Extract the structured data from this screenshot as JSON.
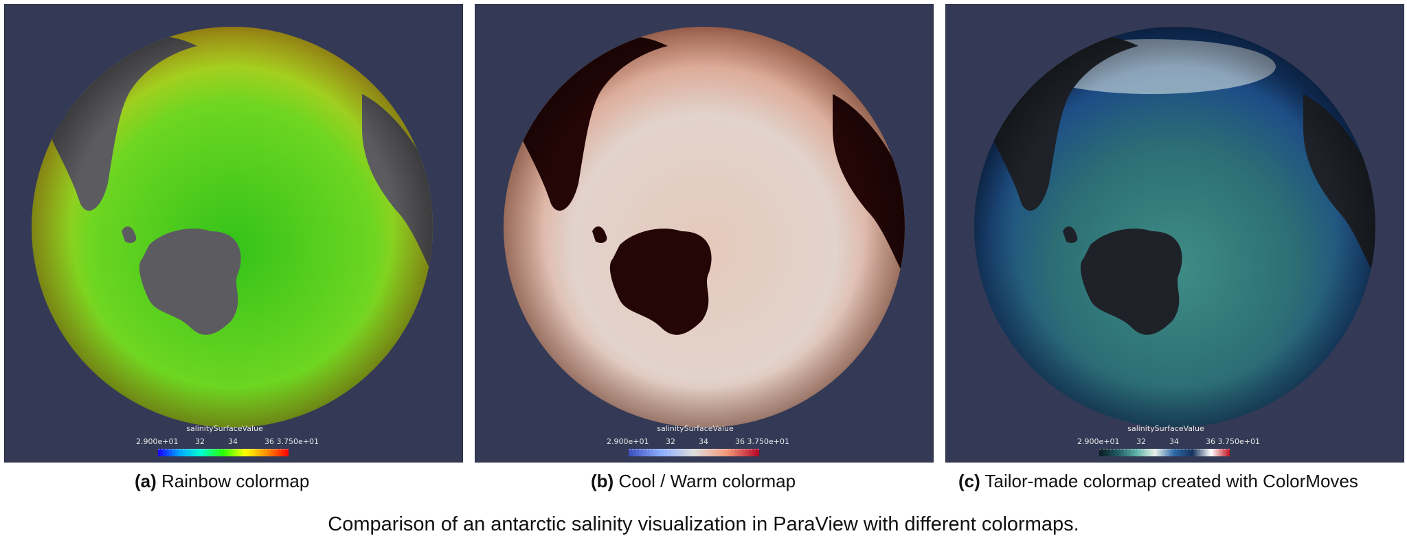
{
  "panels": [
    {
      "id": "a",
      "label": "(a)",
      "caption": "Rainbow colormap",
      "scalar_bar_title": "salinitySurfaceValue",
      "ticks": [
        "2.900e+01",
        "32",
        "34",
        "36",
        "3.750e+01"
      ],
      "colormap": [
        "#1a00ff",
        "#00a8ff",
        "#00ffd0",
        "#28ff00",
        "#ffff00",
        "#ff8c00",
        "#ff0000"
      ],
      "land_color": "#5c5c60",
      "ocean_colors": [
        "#34c21a",
        "#6ed621",
        "#e0c71e",
        "#ff3a10"
      ]
    },
    {
      "id": "b",
      "label": "(b)",
      "caption": "Cool / Warm colormap",
      "scalar_bar_title": "salinitySurfaceValue",
      "ticks": [
        "2.900e+01",
        "32",
        "34",
        "36",
        "3.750e+01"
      ],
      "colormap": [
        "#3b4cc0",
        "#8db0fe",
        "#dddddd",
        "#f49a7b",
        "#b40426"
      ],
      "land_color": "#240606",
      "ocean_colors": [
        "#e5c9bb",
        "#e2d3cc",
        "#d88a6e",
        "#c0362a"
      ]
    },
    {
      "id": "c",
      "label": "(c)",
      "caption": "Tailor-made colormap created with ColorMoves",
      "scalar_bar_title": "salinitySurfaceValue",
      "ticks": [
        "2.900e+01",
        "32",
        "34",
        "36",
        "3.750e+01"
      ],
      "colormap": [
        "#0d1b22",
        "#1f5a63",
        "#5fb3a8",
        "#e9f1ec",
        "#2f6aa8",
        "#15335e",
        "#ffffff",
        "#c01020"
      ],
      "land_color": "#1e2228",
      "ocean_colors": [
        "#3f8d87",
        "#2c6e74",
        "#1e4f86",
        "#123466"
      ]
    }
  ],
  "figure_caption": "Comparison of an antarctic salinity visualization in ParaView with different colormaps."
}
